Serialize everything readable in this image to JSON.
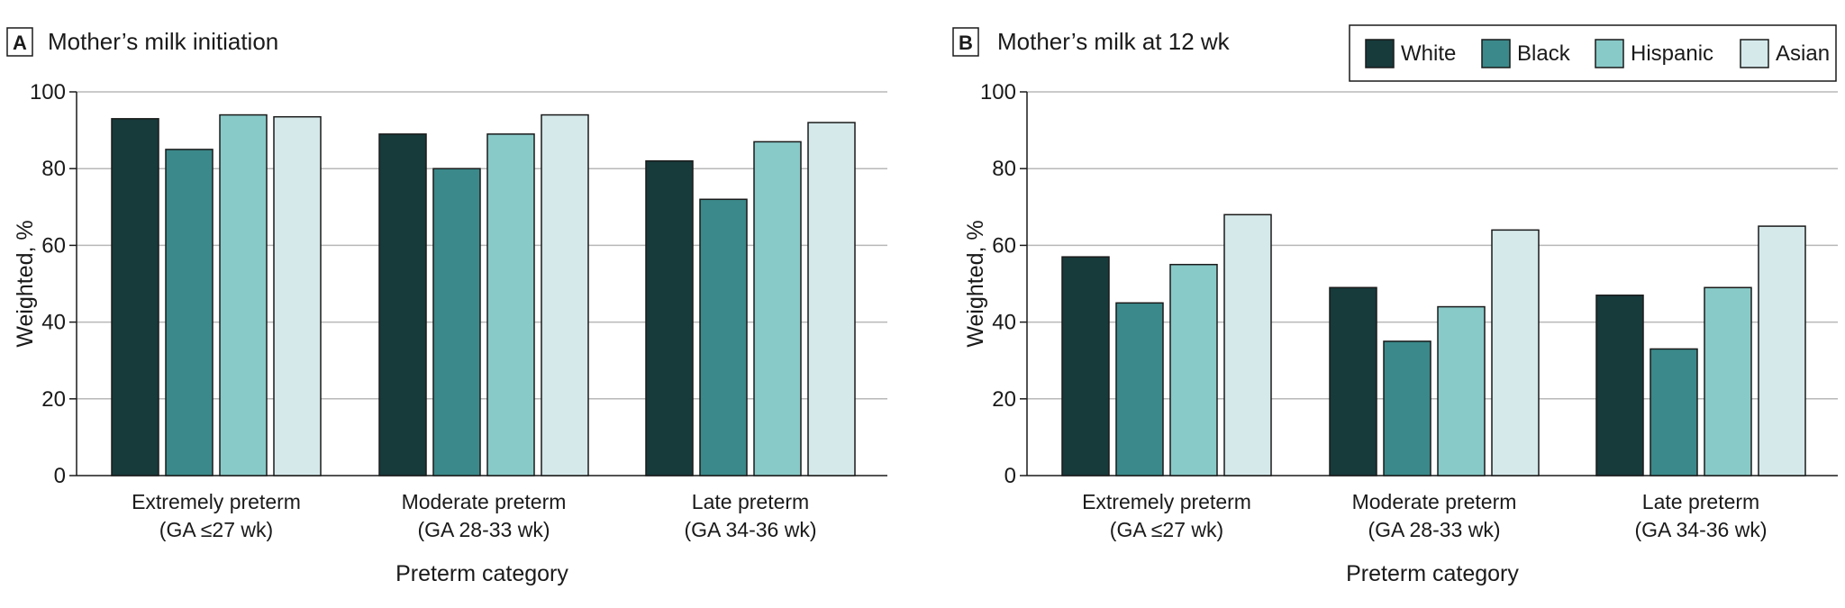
{
  "legend": [
    "White",
    "Black",
    "Hispanic",
    "Asian"
  ],
  "colors": {
    "White": "#173a3b",
    "Black": "#3b898a",
    "Hispanic": "#88cac8",
    "Asian": "#d5e9eb",
    "grid": "#b8b8b8",
    "bar_stroke": "#1a1a1a"
  },
  "chart_data": [
    {
      "type": "bar",
      "panel": "A",
      "title": "Mother’s milk initiation",
      "xlabel": "Preterm category",
      "ylabel": "Weighted, %",
      "ylim": [
        0,
        100
      ],
      "yticks": [
        0,
        20,
        40,
        60,
        80,
        100
      ],
      "grid": true,
      "categories": [
        [
          "Extremely preterm",
          "(GA ≤27 wk)"
        ],
        [
          "Moderate preterm",
          "(GA 28-33 wk)"
        ],
        [
          "Late preterm",
          "(GA 34-36 wk)"
        ]
      ],
      "series": [
        {
          "name": "White",
          "values": [
            93,
            89,
            82
          ]
        },
        {
          "name": "Black",
          "values": [
            85,
            80,
            72
          ]
        },
        {
          "name": "Hispanic",
          "values": [
            94,
            89,
            87
          ]
        },
        {
          "name": "Asian",
          "values": [
            93.5,
            94,
            92
          ]
        }
      ]
    },
    {
      "type": "bar",
      "panel": "B",
      "title": "Mother’s milk at 12 wk",
      "xlabel": "Preterm category",
      "ylabel": "Weighted, %",
      "ylim": [
        0,
        100
      ],
      "yticks": [
        0,
        20,
        40,
        60,
        80,
        100
      ],
      "grid": true,
      "legend_position": "top-right",
      "categories": [
        [
          "Extremely preterm",
          "(GA ≤27 wk)"
        ],
        [
          "Moderate preterm",
          "(GA 28-33 wk)"
        ],
        [
          "Late preterm",
          "(GA 34-36 wk)"
        ]
      ],
      "series": [
        {
          "name": "White",
          "values": [
            57,
            49,
            47
          ]
        },
        {
          "name": "Black",
          "values": [
            45,
            35,
            33
          ]
        },
        {
          "name": "Hispanic",
          "values": [
            55,
            44,
            49
          ]
        },
        {
          "name": "Asian",
          "values": [
            68,
            64,
            65
          ]
        }
      ]
    }
  ]
}
